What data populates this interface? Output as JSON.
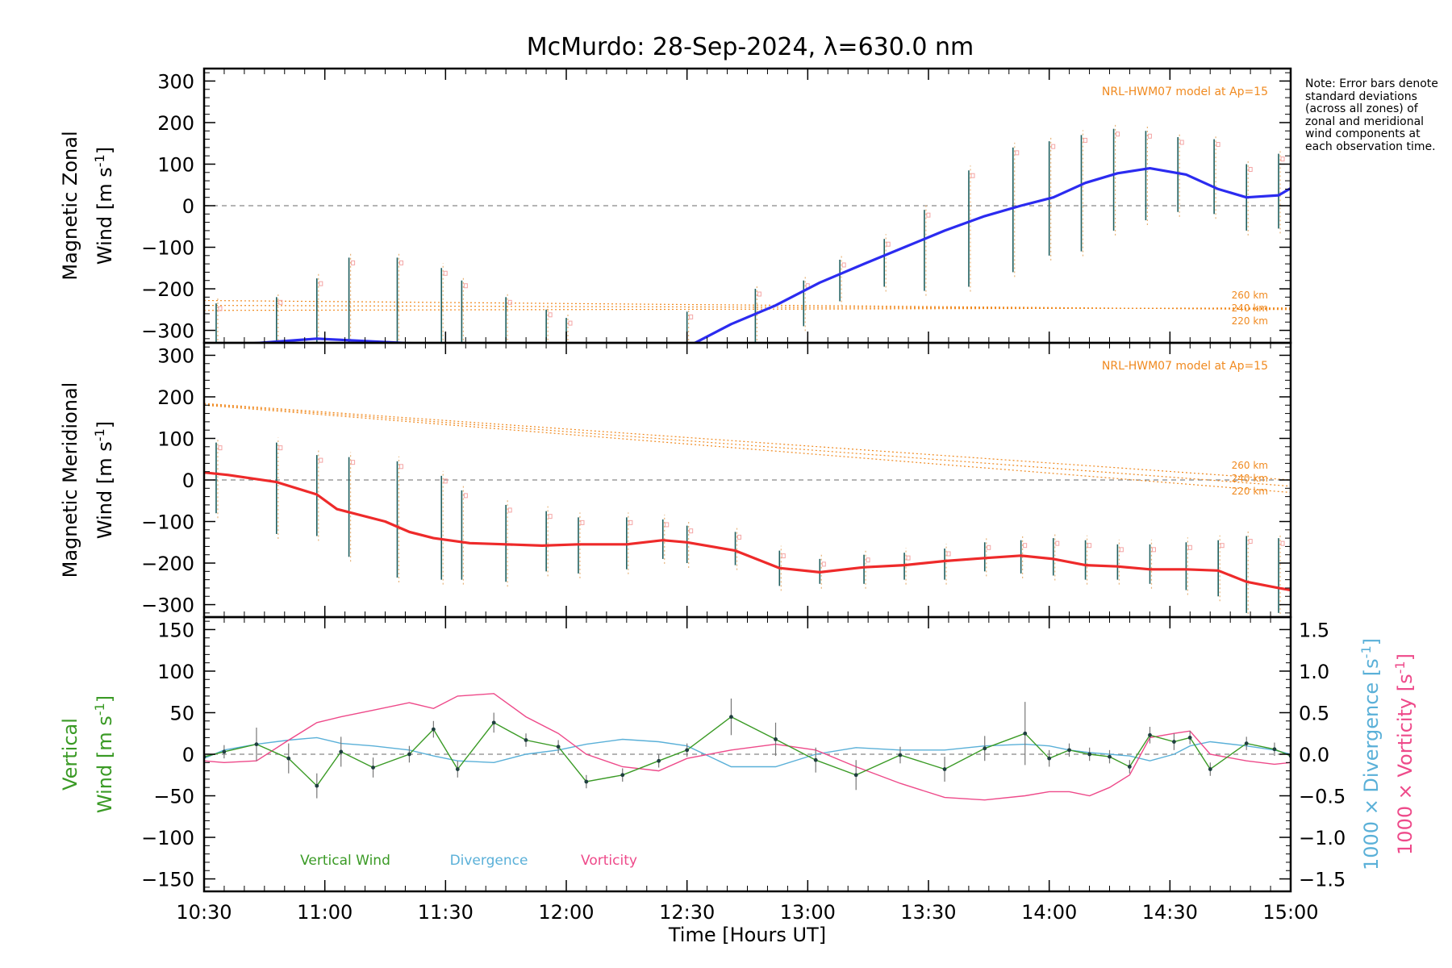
{
  "title": "McMurdo: 28-Sep-2024, λ=630.0 nm",
  "note": "Note: Error bars denote standard deviations (across all zones) of zonal and meridional wind components at each observation time.",
  "colors": {
    "zonal": "#2b2bf0",
    "meridional": "#ee2a2a",
    "vertical": "#3a9a25",
    "divergence": "#5ab0d8",
    "vorticity": "#ee4a8a",
    "model": "#f08a20",
    "error_bar": "#1f5f5f",
    "zero_line": "#888888"
  },
  "chart_data": [
    {
      "type": "line",
      "name": "zonal",
      "ylabel_line1": "Magnetic Zonal",
      "ylabel_line2": "Wind [m s",
      "ylabel_sup": "-1",
      "ylabel_close": "]",
      "ylim": [
        -330,
        330
      ],
      "yticks": [
        "300",
        "200",
        "100",
        "0",
        "−100",
        "−200",
        "−300"
      ],
      "ytick_values": [
        300,
        200,
        100,
        0,
        -100,
        -200,
        -300
      ],
      "model_label": "NRL-HWM07 model at Ap=15",
      "altitude_labels": [
        "260 km",
        "240 km",
        "220 km"
      ],
      "model_series": [
        {
          "name": "260 km",
          "x": [
            10.5,
            15.0
          ],
          "y": [
            -228,
            -250
          ]
        },
        {
          "name": "240 km",
          "x": [
            10.5,
            15.0
          ],
          "y": [
            -240,
            -248
          ]
        },
        {
          "name": "220 km",
          "x": [
            10.5,
            15.0
          ],
          "y": [
            -252,
            -246
          ]
        }
      ],
      "series": {
        "x": [
          10.5,
          10.967,
          11.417,
          12.5,
          12.683,
          12.867,
          13.05,
          13.233,
          13.4,
          13.567,
          13.733,
          13.883,
          14.017,
          14.15,
          14.283,
          14.417,
          14.567,
          14.7,
          14.817,
          14.95,
          15.0
        ],
        "y": [
          -340,
          -320,
          -333,
          -340,
          -285,
          -240,
          -185,
          -140,
          -100,
          -60,
          -25,
          0,
          20,
          55,
          78,
          90,
          75,
          40,
          20,
          25,
          42
        ]
      },
      "error_bars": {
        "x": [
          10.55,
          10.8,
          10.967,
          11.1,
          11.3,
          11.483,
          11.567,
          11.75,
          11.917,
          12.0,
          12.5,
          12.783,
          12.983,
          13.133,
          13.317,
          13.483,
          13.667,
          13.85,
          14.0,
          14.133,
          14.267,
          14.4,
          14.533,
          14.683,
          14.817,
          14.95
        ],
        "y": [
          -290,
          -310,
          -280,
          -260,
          -270,
          -275,
          -285,
          -300,
          -320,
          -340,
          -320,
          -285,
          -240,
          -185,
          -145,
          -110,
          -65,
          -25,
          0,
          18,
          40,
          70,
          85,
          90,
          45,
          25
        ],
        "low": [
          -400,
          -400,
          -380,
          -380,
          -380,
          -380,
          -380,
          -380,
          -380,
          -400,
          -400,
          -400,
          -290,
          -230,
          -195,
          -205,
          -195,
          -160,
          -120,
          -110,
          -60,
          -35,
          -15,
          -20,
          -60,
          -55
        ],
        "high": [
          -235,
          -220,
          -175,
          -125,
          -125,
          -150,
          -180,
          -220,
          -250,
          -270,
          -255,
          -200,
          -180,
          -130,
          -80,
          -10,
          85,
          140,
          155,
          170,
          185,
          180,
          165,
          160,
          100,
          125
        ]
      }
    },
    {
      "type": "line",
      "name": "meridional",
      "ylabel_line1": "Magnetic Meridional",
      "ylabel_line2": "Wind [m s",
      "ylabel_sup": "-1",
      "ylabel_close": "]",
      "ylim": [
        -330,
        330
      ],
      "yticks": [
        "300",
        "200",
        "100",
        "0",
        "−100",
        "−200",
        "−300"
      ],
      "ytick_values": [
        300,
        200,
        100,
        0,
        -100,
        -200,
        -300
      ],
      "model_label": "NRL-HWM07 model at Ap=15",
      "altitude_labels": [
        "260 km",
        "240 km",
        "220 km"
      ],
      "model_series": [
        {
          "name": "260 km",
          "x": [
            10.5,
            15.0
          ],
          "y": [
            184,
            0
          ]
        },
        {
          "name": "240 km",
          "x": [
            10.5,
            15.0
          ],
          "y": [
            182,
            -15
          ]
        },
        {
          "name": "220 km",
          "x": [
            10.5,
            15.0
          ],
          "y": [
            180,
            -30
          ]
        }
      ],
      "series": {
        "x": [
          10.5,
          10.6,
          10.8,
          10.967,
          11.05,
          11.25,
          11.35,
          11.45,
          11.6,
          11.75,
          11.9,
          12.05,
          12.25,
          12.4,
          12.5,
          12.7,
          12.883,
          13.05,
          13.233,
          13.4,
          13.567,
          13.733,
          13.883,
          14.017,
          14.15,
          14.283,
          14.417,
          14.567,
          14.7,
          14.817,
          14.95,
          15.0
        ],
        "y": [
          18,
          12,
          -5,
          -35,
          -70,
          -100,
          -125,
          -140,
          -152,
          -155,
          -158,
          -155,
          -155,
          -145,
          -150,
          -170,
          -212,
          -222,
          -210,
          -205,
          -195,
          -188,
          -182,
          -190,
          -205,
          -208,
          -215,
          -215,
          -218,
          -245,
          -260,
          -265
        ]
      },
      "error_bars": {
        "x": [
          10.55,
          10.8,
          10.967,
          11.1,
          11.3,
          11.483,
          11.567,
          11.75,
          11.917,
          12.05,
          12.25,
          12.4,
          12.5,
          12.7,
          12.883,
          13.05,
          13.233,
          13.4,
          13.567,
          13.733,
          13.883,
          14.017,
          14.15,
          14.283,
          14.417,
          14.567,
          14.7,
          14.817,
          14.95
        ],
        "y": [
          15,
          -5,
          -30,
          -65,
          -100,
          -125,
          -140,
          -150,
          -155,
          -158,
          -155,
          -150,
          -150,
          -170,
          -212,
          -222,
          -210,
          -205,
          -195,
          -188,
          -182,
          -190,
          -205,
          -208,
          -215,
          -215,
          -218,
          -245,
          -260
        ],
        "low": [
          -80,
          -130,
          -135,
          -185,
          -235,
          -240,
          -240,
          -245,
          -220,
          -225,
          -215,
          -190,
          -200,
          -205,
          -255,
          -250,
          -250,
          -240,
          -240,
          -220,
          -225,
          -230,
          -240,
          -240,
          -250,
          -265,
          -280,
          -320,
          -320
        ],
        "high": [
          90,
          90,
          60,
          55,
          45,
          10,
          -25,
          -60,
          -75,
          -90,
          -90,
          -95,
          -110,
          -125,
          -170,
          -190,
          -180,
          -175,
          -165,
          -150,
          -145,
          -140,
          -145,
          -155,
          -155,
          -150,
          -145,
          -135,
          -140
        ]
      }
    },
    {
      "type": "line",
      "name": "vertical",
      "ylabel_line1": "Vertical",
      "ylabel_line2": "Wind [m s",
      "ylabel_sup": "-1",
      "ylabel_close": "]",
      "ylim": [
        -165,
        165
      ],
      "yticks": [
        "150",
        "100",
        "50",
        "0",
        "−50",
        "−100",
        "−150"
      ],
      "ytick_values": [
        150,
        100,
        50,
        0,
        -50,
        -100,
        -150
      ],
      "y2ticks": [
        "1.5",
        "1.0",
        "0.5",
        "0.0",
        "−0.5",
        "−1.0",
        "−1.5"
      ],
      "y2tick_values": [
        1.5,
        1.0,
        0.5,
        0.0,
        -0.5,
        -1.0,
        -1.5
      ],
      "y2lim": [
        -1.65,
        1.65
      ],
      "y2label_div": "1000 × Divergence [s",
      "y2label_vor": "1000 × Vorticity [s",
      "y2label_sup": "-1",
      "y2label_close": "]",
      "legend": [
        "Vertical Wind",
        "Divergence",
        "Vorticity"
      ],
      "series": [
        {
          "name": "Vertical Wind",
          "x": [
            10.5,
            10.583,
            10.717,
            10.85,
            10.967,
            11.067,
            11.2,
            11.35,
            11.45,
            11.55,
            11.7,
            11.833,
            11.967,
            12.083,
            12.233,
            12.383,
            12.5,
            12.683,
            12.867,
            13.033,
            13.2,
            13.383,
            13.567,
            13.733,
            13.9,
            14.0,
            14.083,
            14.167,
            14.25,
            14.333,
            14.417,
            14.517,
            14.583,
            14.667,
            14.817,
            14.933,
            15.0
          ],
          "y": [
            -3,
            3,
            12,
            -5,
            -38,
            3,
            -16,
            0,
            30,
            -18,
            38,
            17,
            9,
            -33,
            -25,
            -8,
            5,
            45,
            18,
            -7,
            -25,
            -1,
            -18,
            7,
            25,
            -5,
            5,
            0,
            -3,
            -15,
            23,
            15,
            20,
            -18,
            13,
            6,
            -2
          ],
          "error": [
            8,
            8,
            20,
            18,
            15,
            18,
            12,
            10,
            10,
            10,
            12,
            8,
            8,
            8,
            8,
            8,
            8,
            22,
            20,
            15,
            18,
            10,
            15,
            15,
            38,
            10,
            8,
            8,
            8,
            8,
            10,
            10,
            8,
            8,
            8,
            8,
            8
          ]
        },
        {
          "name": "Divergence",
          "x": [
            10.5,
            10.583,
            10.717,
            10.85,
            10.967,
            11.067,
            11.2,
            11.35,
            11.45,
            11.55,
            11.7,
            11.833,
            11.967,
            12.083,
            12.233,
            12.383,
            12.5,
            12.683,
            12.867,
            13.033,
            13.2,
            13.383,
            13.567,
            13.733,
            13.9,
            14.0,
            14.083,
            14.167,
            14.25,
            14.333,
            14.417,
            14.517,
            14.583,
            14.667,
            14.817,
            14.933,
            15.0
          ],
          "y": [
            -0.05,
            0.05,
            0.12,
            0.17,
            0.2,
            0.13,
            0.1,
            0.05,
            -0.02,
            -0.08,
            -0.1,
            0.0,
            0.05,
            0.12,
            0.18,
            0.15,
            0.1,
            -0.15,
            -0.15,
            0.0,
            0.08,
            0.05,
            0.05,
            0.1,
            0.12,
            0.1,
            0.05,
            0.02,
            0.0,
            -0.02,
            -0.08,
            0.0,
            0.1,
            0.15,
            0.1,
            0.05,
            0.0
          ]
        },
        {
          "name": "Vorticity",
          "x": [
            10.5,
            10.583,
            10.717,
            10.85,
            10.967,
            11.067,
            11.2,
            11.35,
            11.45,
            11.55,
            11.7,
            11.833,
            11.967,
            12.083,
            12.233,
            12.383,
            12.5,
            12.683,
            12.867,
            13.033,
            13.2,
            13.383,
            13.567,
            13.733,
            13.9,
            14.0,
            14.083,
            14.167,
            14.25,
            14.333,
            14.417,
            14.517,
            14.583,
            14.667,
            14.817,
            14.933,
            15.0
          ],
          "y": [
            -0.08,
            -0.1,
            -0.08,
            0.17,
            0.38,
            0.45,
            0.53,
            0.62,
            0.55,
            0.7,
            0.73,
            0.45,
            0.25,
            0.0,
            -0.15,
            -0.2,
            -0.05,
            0.05,
            0.12,
            0.05,
            -0.15,
            -0.35,
            -0.52,
            -0.55,
            -0.5,
            -0.45,
            -0.45,
            -0.5,
            -0.4,
            -0.25,
            0.2,
            0.25,
            0.28,
            0.0,
            -0.08,
            -0.12,
            -0.1
          ]
        }
      ]
    }
  ],
  "xaxis": {
    "label": "Time [Hours UT]",
    "xlim": [
      10.5,
      15.0
    ],
    "ticks": [
      "10:30",
      "11:00",
      "11:30",
      "12:00",
      "12:30",
      "13:00",
      "13:30",
      "14:00",
      "14:30",
      "15:00"
    ],
    "tick_values": [
      10.5,
      11.0,
      11.5,
      12.0,
      12.5,
      13.0,
      13.5,
      14.0,
      14.5,
      15.0
    ]
  }
}
